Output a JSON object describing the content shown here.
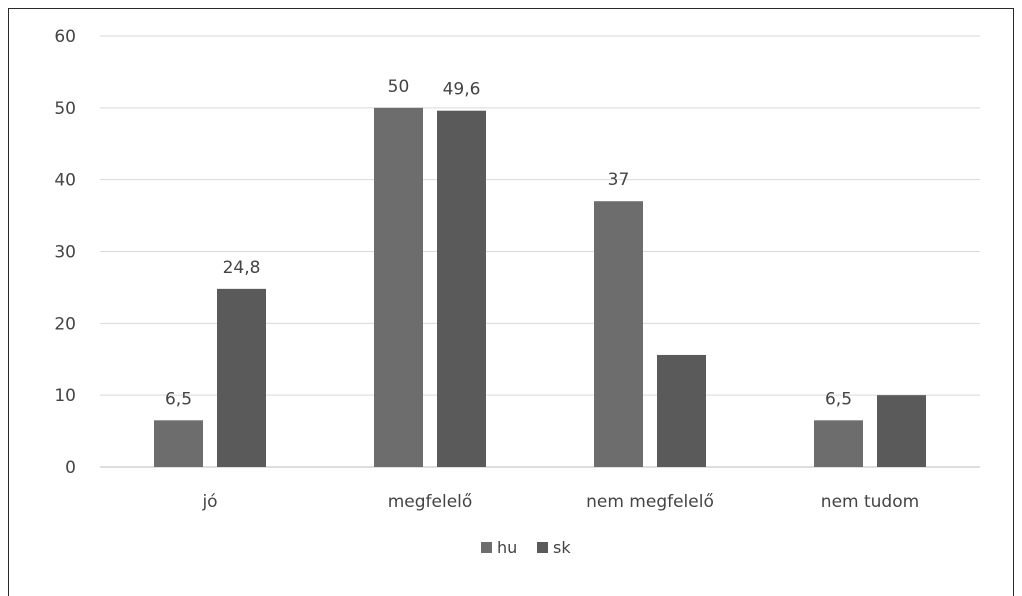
{
  "chart_data": {
    "type": "bar",
    "categories": [
      "jó",
      "megfelelő",
      "nem megfelelő",
      "nem tudom"
    ],
    "series": [
      {
        "name": "hu",
        "values": [
          6.5,
          50,
          37,
          6.5
        ],
        "color": "#6d6d6d"
      },
      {
        "name": "sk",
        "values": [
          24.8,
          49.6,
          15.6,
          10
        ],
        "color": "#5a5a5a"
      }
    ],
    "data_labels": {
      "hu": [
        "6,5",
        "50",
        "37",
        "6,5"
      ],
      "sk": [
        "24,8",
        "49,6",
        "",
        ""
      ]
    },
    "ylim": [
      0,
      60
    ],
    "yticks": [
      0,
      10,
      20,
      30,
      40,
      50,
      60
    ],
    "grid": true,
    "legend_position": "bottom"
  }
}
